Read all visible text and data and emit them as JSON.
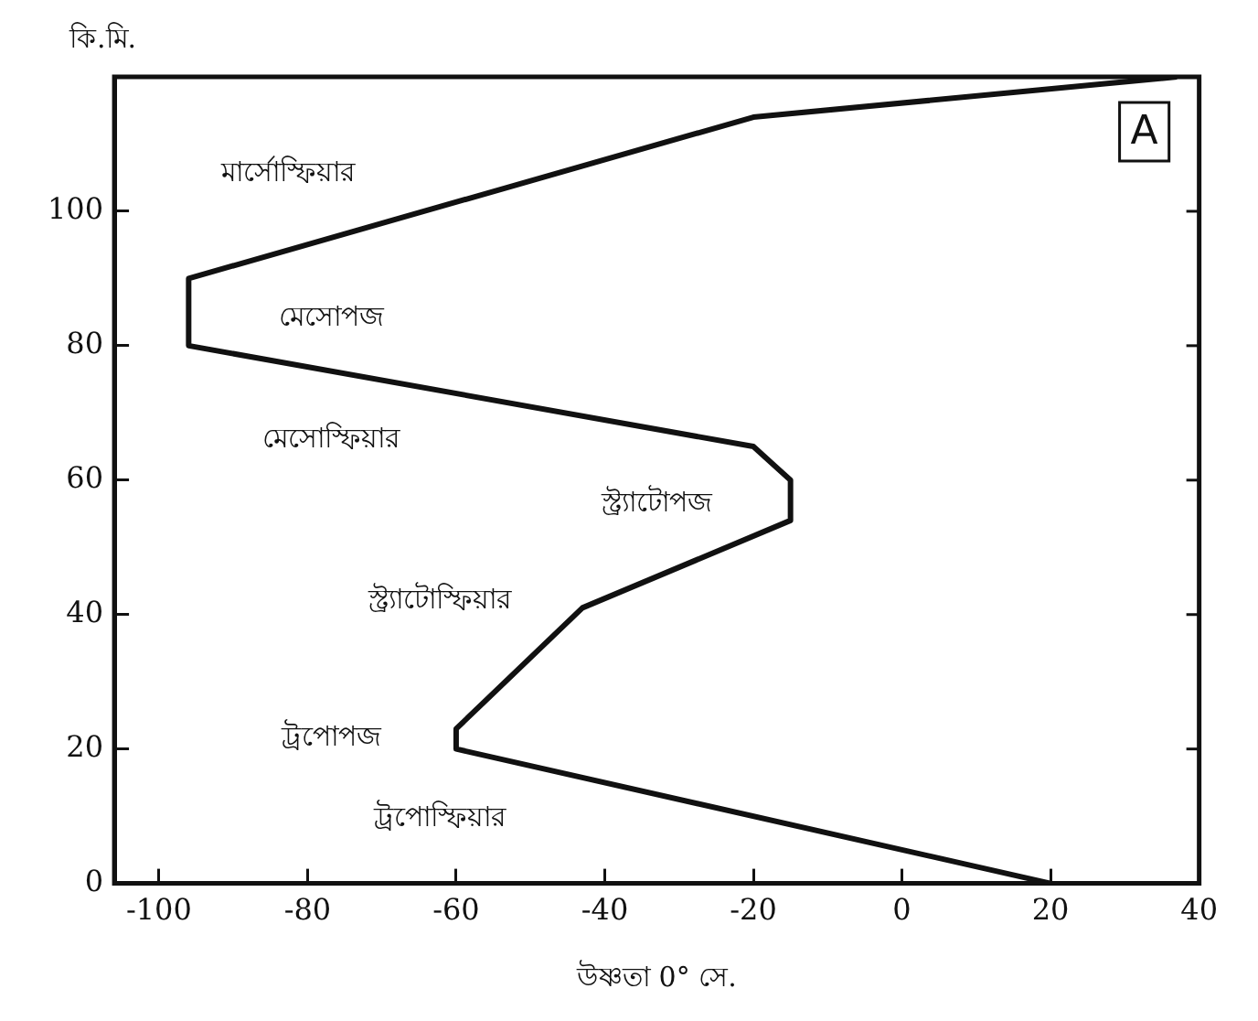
{
  "chart_data": {
    "type": "line",
    "ylabel": "কি.মি.",
    "xlabel": "উষ্ণতা 0° সে.",
    "xlim": [
      -106,
      40
    ],
    "xticks": [
      -100,
      -80,
      -60,
      -40,
      -20,
      0,
      20,
      40
    ],
    "ylim": [
      0,
      120
    ],
    "yticks": [
      0,
      20,
      40,
      60,
      80,
      100
    ],
    "grid": false,
    "legend": false,
    "marker": "none",
    "line_style": "solid",
    "series": [
      {
        "color": "#111111",
        "x": [
          20,
          -60,
          -60,
          -43,
          -15,
          -15,
          -20,
          -96,
          -96,
          -20,
          37
        ],
        "values": [
          0,
          20,
          23,
          41,
          54,
          60,
          65,
          80,
          90,
          114,
          120
        ]
      }
    ],
    "annotations": [
      "মার্সোস্ফিয়ার",
      "মেসোপজ",
      "মেসোস্ফিয়ার",
      "স্ট্র্যাটোপজ",
      "স্ট্র্যাটোস্ফিয়ার",
      "ট্রপোপজ",
      "ট্রপোস্ফিয়ার",
      "A"
    ]
  }
}
